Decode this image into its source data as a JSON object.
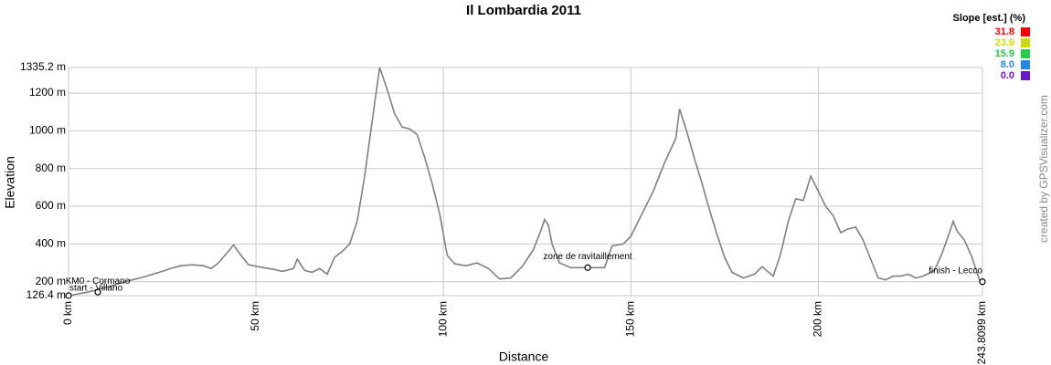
{
  "chart_data": {
    "type": "line",
    "title": "Il Lombardia 2011",
    "x_label": "Distance",
    "y_label": "Elevation",
    "credit": "created by GPSVisualizer.com",
    "color": "#808080",
    "grid": true,
    "xlim": [
      0,
      243.8099
    ],
    "ylim": [
      126.4,
      1335.2
    ],
    "xticks": [
      {
        "value": 0,
        "label": "0 km"
      },
      {
        "value": 50,
        "label": "50 km"
      },
      {
        "value": 100,
        "label": "100 km"
      },
      {
        "value": 150,
        "label": "150 km"
      },
      {
        "value": 200,
        "label": "200 km"
      },
      {
        "value": 243.8099,
        "label": "243.8099 km"
      }
    ],
    "yticks": [
      {
        "value": 126.4,
        "label": "126.4 m"
      },
      {
        "value": 200,
        "label": "200 m"
      },
      {
        "value": 400,
        "label": "400 m"
      },
      {
        "value": 600,
        "label": "600 m"
      },
      {
        "value": 800,
        "label": "800 m"
      },
      {
        "value": 1000,
        "label": "1000 m"
      },
      {
        "value": 1200,
        "label": "1200 m"
      },
      {
        "value": 1335.2,
        "label": "1335.2 m"
      }
    ],
    "x": [
      0,
      5,
      10,
      15,
      20,
      25,
      28,
      30,
      33,
      36,
      38,
      40,
      43,
      44,
      46,
      48,
      52,
      55,
      57,
      60,
      61,
      63,
      65,
      67,
      69,
      71,
      73,
      75,
      77,
      79,
      81,
      83,
      85,
      87,
      89,
      91,
      93,
      95,
      97,
      99,
      101,
      103,
      106,
      109,
      112,
      115,
      118,
      121,
      124,
      126,
      127,
      128,
      129,
      131,
      134,
      137,
      140,
      143,
      145,
      148,
      150,
      153,
      156,
      159,
      162,
      163,
      165,
      167,
      169,
      171,
      173,
      175,
      177,
      180,
      183,
      185,
      188,
      190,
      192,
      194,
      196,
      198,
      200,
      202,
      204,
      206,
      208,
      210,
      212,
      214,
      216,
      218,
      220,
      222,
      224,
      226,
      228,
      231,
      233,
      235,
      236,
      237,
      239,
      241,
      243,
      243.8099
    ],
    "values": [
      126,
      145,
      170,
      200,
      225,
      255,
      275,
      285,
      290,
      285,
      270,
      300,
      370,
      395,
      340,
      290,
      275,
      265,
      255,
      270,
      320,
      260,
      250,
      270,
      240,
      330,
      360,
      400,
      520,
      760,
      1050,
      1335,
      1220,
      1090,
      1020,
      1010,
      980,
      860,
      720,
      560,
      340,
      295,
      285,
      300,
      270,
      215,
      220,
      280,
      370,
      470,
      530,
      500,
      400,
      300,
      275,
      275,
      275,
      275,
      390,
      400,
      440,
      560,
      680,
      830,
      960,
      1115,
      990,
      850,
      720,
      580,
      450,
      330,
      250,
      220,
      240,
      280,
      230,
      350,
      520,
      640,
      630,
      760,
      680,
      600,
      550,
      460,
      480,
      490,
      420,
      320,
      220,
      210,
      230,
      230,
      240,
      220,
      230,
      260,
      350,
      460,
      520,
      470,
      420,
      330,
      210,
      200
    ],
    "waypoints": [
      {
        "x": 0,
        "y": 126.4,
        "label": "start - Villano"
      },
      {
        "x": 7.8,
        "y": 145,
        "label": "KM0 - Cormano"
      },
      {
        "x": 138.5,
        "y": 275,
        "label": "zone de ravitaillement"
      },
      {
        "x": 243.8099,
        "y": 200,
        "label": "finish - Lecco"
      }
    ],
    "slope_legend": {
      "title": "Slope [est.] (%)",
      "items": [
        {
          "label": "31.8",
          "color": "#ff0000"
        },
        {
          "label": "23.9",
          "color": "#ccdd00"
        },
        {
          "label": "15.9",
          "color": "#22cc44"
        },
        {
          "label": "8.0",
          "color": "#2288ee"
        },
        {
          "label": "0.0",
          "color": "#6a14d0"
        }
      ]
    }
  }
}
